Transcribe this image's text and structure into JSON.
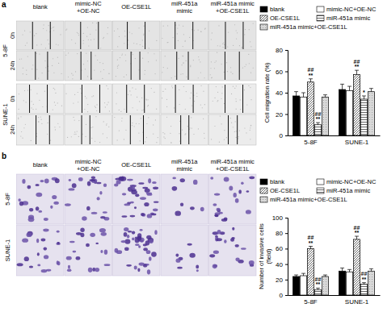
{
  "figure": {
    "panels": [
      {
        "label": "a",
        "columns": [
          [
            "blank"
          ],
          [
            "mimic-NC",
            "+OE-NC"
          ],
          [
            "OE-CSE1L"
          ],
          [
            "miR-451a",
            "mimic"
          ],
          [
            "miR-451a mimic",
            "+OE-CSE1L"
          ]
        ],
        "rows": [
          {
            "cell_line": "5-8F",
            "timepoints": [
              "0h",
              "24h"
            ]
          },
          {
            "cell_line": "SUNE-1",
            "timepoints": [
              "0h",
              "24h"
            ]
          }
        ]
      },
      {
        "label": "b",
        "columns": [
          [
            "blank"
          ],
          [
            "mimic-NC",
            "+OE-NC"
          ],
          [
            "OE-CSE1L"
          ],
          [
            "miR-451a",
            "mimic"
          ],
          [
            "miR-451a mimic",
            "+OE-CSE1L"
          ]
        ],
        "rows": [
          {
            "cell_line": "5-8F"
          },
          {
            "cell_line": "SUNE-1"
          }
        ]
      }
    ]
  },
  "chart_data": [
    {
      "type": "bar",
      "y_label": "Cell migration rate (%)",
      "categories": [
        "5-8F",
        "SUNE-1"
      ],
      "series": [
        {
          "name": "blank",
          "color": "#000000",
          "values": [
            37,
            43
          ],
          "errors": [
            4,
            5
          ],
          "annotations": [
            [],
            []
          ]
        },
        {
          "name": "mimic-NC+OE-NC",
          "color": "#ffffff",
          "values": [
            36,
            42
          ],
          "errors": [
            4,
            4
          ],
          "annotations": [
            [],
            []
          ]
        },
        {
          "name": "OE-CSE1L",
          "color": "#ffffff",
          "values": [
            50,
            57
          ],
          "errors": [
            3,
            4
          ],
          "annotations": [
            [
              "##",
              "**"
            ],
            [
              "##",
              "**"
            ]
          ]
        },
        {
          "name": "miR-451a mimic",
          "color": "#ffffff",
          "values": [
            10,
            34
          ],
          "errors": [
            2,
            3
          ],
          "annotations": [
            [
              "##",
              "**"
            ],
            [
              "*"
            ]
          ]
        },
        {
          "name": "miR-451a mimic+OE-CSE1L",
          "color": "#d9d9d9",
          "values": [
            36,
            41
          ],
          "errors": [
            2,
            3
          ],
          "annotations": [
            [],
            []
          ]
        }
      ],
      "ylim": [
        0,
        80
      ],
      "yticks": [
        0,
        20,
        40,
        60,
        80
      ],
      "legend": "top"
    },
    {
      "type": "bar",
      "y_label": [
        "Number of invasive cells",
        "(field)"
      ],
      "categories": [
        "5-8F",
        "SUNE-1"
      ],
      "series": [
        {
          "name": "blank",
          "color": "#000000",
          "values": [
            24,
            31
          ],
          "errors": [
            2,
            4
          ],
          "annotations": [
            [],
            []
          ]
        },
        {
          "name": "mimic-NC+OE-NC",
          "color": "#ffffff",
          "values": [
            25,
            30
          ],
          "errors": [
            3,
            3
          ],
          "annotations": [
            [],
            []
          ]
        },
        {
          "name": "OE-CSE1L",
          "color": "#ffffff",
          "values": [
            60,
            72
          ],
          "errors": [
            3,
            4
          ],
          "annotations": [
            [
              "##",
              "**"
            ],
            [
              "##",
              "**"
            ]
          ]
        },
        {
          "name": "miR-451a mimic",
          "color": "#ffffff",
          "values": [
            7,
            14
          ],
          "errors": [
            2,
            2
          ],
          "annotations": [
            [
              "##",
              "**"
            ],
            [
              "##",
              "**"
            ]
          ]
        },
        {
          "name": "miR-451a mimic+OE-CSE1L",
          "color": "#d9d9d9",
          "values": [
            24,
            31
          ],
          "errors": [
            2,
            3
          ],
          "annotations": [
            [],
            []
          ]
        }
      ],
      "ylim": [
        0,
        100
      ],
      "yticks": [
        0,
        20,
        40,
        60,
        80,
        100
      ],
      "legend": "top"
    }
  ]
}
